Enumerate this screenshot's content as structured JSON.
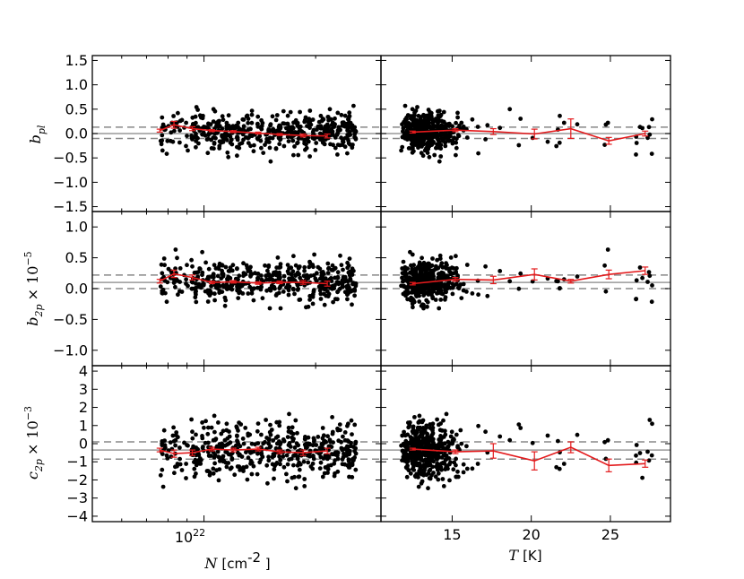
{
  "figure": {
    "x_axes": [
      {
        "symbol": "N",
        "unit": "[cm",
        "unit_exp": "-2",
        "unit_close": " ]",
        "scale": "log",
        "xlim": [
          5000000000000000000000,
          30000000000000000000000
        ],
        "ticks": [
          {
            "value": 10000000000000000000000,
            "base": "10",
            "exp": "22"
          }
        ]
      },
      {
        "symbol": "T",
        "unit": "[K]",
        "scale": "linear",
        "xlim": [
          10.5,
          28.8
        ],
        "ticks": [
          15,
          20,
          25
        ]
      }
    ],
    "rows": [
      {
        "ylabel": "b",
        "ylabel_sub": "pl",
        "ylabel_factor": "",
        "ylabel_exp": "",
        "ylim": [
          -1.6,
          1.6
        ],
        "ticks": [
          "1.5",
          "1.0",
          "0.5",
          "0.0",
          "−0.5",
          "−1.0",
          "−1.5"
        ],
        "tick_values": [
          1.5,
          1.0,
          0.5,
          0.0,
          -0.5,
          -1.0,
          -1.5
        ],
        "hlines": {
          "solid": 0.0,
          "dashed": [
            0.13,
            -0.1
          ]
        }
      },
      {
        "ylabel": "b",
        "ylabel_sub": "2p",
        "ylabel_factor": "× 10",
        "ylabel_exp": "−5",
        "ylim": [
          -1.25,
          1.25
        ],
        "ticks": [
          "1.0",
          "0.5",
          "0.0",
          "−0.5",
          "−1.0"
        ],
        "tick_values": [
          1.0,
          0.5,
          0.0,
          -0.5,
          -1.0
        ],
        "hlines": {
          "solid": 0.1,
          "dashed": [
            0.22,
            0.0
          ]
        }
      },
      {
        "ylabel": "c",
        "ylabel_sub": "2p",
        "ylabel_factor": "× 10",
        "ylabel_exp": "−3",
        "ylim": [
          -4.3,
          4.3
        ],
        "ticks": [
          "4",
          "3",
          "2",
          "1",
          "0",
          "−1",
          "−2",
          "−3",
          "−4"
        ],
        "tick_values": [
          4,
          3,
          2,
          1,
          0,
          -1,
          -2,
          -3,
          -4
        ],
        "hlines": {
          "solid": -0.35,
          "dashed": [
            0.1,
            -0.85
          ]
        }
      }
    ],
    "colors": {
      "points": "#000000",
      "binned": "#e31a1c",
      "solid_line": "#999999",
      "dashed_line": "#888888"
    }
  },
  "chart_data": [
    {
      "type": "scatter",
      "panel": "row1-left",
      "x_label": "N [cm^-2]",
      "y_label": "b_pl",
      "note": "~500 scattered source points centered near 0.05, spread about ±0.35",
      "binned_series": {
        "x": [
          7.6e+21,
          8.3e+21,
          9.3e+21,
          1.05e+22,
          1.2e+22,
          1.4e+22,
          1.6e+22,
          1.85e+22,
          2.15e+22
        ],
        "y": [
          0.06,
          0.18,
          0.1,
          0.06,
          0.04,
          0.01,
          -0.02,
          -0.04,
          -0.05
        ],
        "err": [
          0.03,
          0.07,
          0.04,
          0.02,
          0.02,
          0.02,
          0.02,
          0.03,
          0.04
        ]
      }
    },
    {
      "type": "scatter",
      "panel": "row1-right",
      "x_label": "T [K]",
      "y_label": "b_pl",
      "note": "dense cluster at T 11.5–15 K",
      "binned_series": {
        "x": [
          12.5,
          15.2,
          17.6,
          20.2,
          22.5,
          24.9,
          27.2
        ],
        "y": [
          0.03,
          0.07,
          0.04,
          -0.01,
          0.1,
          -0.15,
          0.0
        ],
        "err": [
          0.02,
          0.03,
          0.06,
          0.1,
          0.2,
          0.07,
          0.05
        ]
      }
    },
    {
      "type": "scatter",
      "panel": "row2-left",
      "x_label": "N [cm^-2]",
      "y_label": "b_2p × 10^-5",
      "binned_series": {
        "x": [
          7.6e+21,
          8.3e+21,
          9.3e+21,
          1.05e+22,
          1.2e+22,
          1.4e+22,
          1.6e+22,
          1.85e+22,
          2.15e+22
        ],
        "y": [
          0.12,
          0.24,
          0.18,
          0.1,
          0.11,
          0.09,
          0.1,
          0.1,
          0.08
        ],
        "err": [
          0.03,
          0.06,
          0.04,
          0.02,
          0.02,
          0.02,
          0.02,
          0.03,
          0.04
        ]
      }
    },
    {
      "type": "scatter",
      "panel": "row2-right",
      "x_label": "T [K]",
      "y_label": "b_2p × 10^-5",
      "binned_series": {
        "x": [
          12.5,
          15.2,
          17.6,
          20.2,
          22.5,
          24.9,
          27.2
        ],
        "y": [
          0.08,
          0.15,
          0.14,
          0.23,
          0.12,
          0.23,
          0.29
        ],
        "err": [
          0.02,
          0.03,
          0.06,
          0.09,
          0.03,
          0.07,
          0.06
        ]
      }
    },
    {
      "type": "scatter",
      "panel": "row3-left",
      "x_label": "N [cm^-2]",
      "y_label": "c_2p × 10^-3",
      "binned_series": {
        "x": [
          7.6e+21,
          8.3e+21,
          9.3e+21,
          1.05e+22,
          1.2e+22,
          1.4e+22,
          1.6e+22,
          1.85e+22,
          2.15e+22
        ],
        "y": [
          -0.35,
          -0.55,
          -0.5,
          -0.3,
          -0.35,
          -0.3,
          -0.45,
          -0.5,
          -0.4
        ],
        "err": [
          0.1,
          0.2,
          0.15,
          0.1,
          0.1,
          0.1,
          0.1,
          0.15,
          0.15
        ]
      }
    },
    {
      "type": "scatter",
      "panel": "row3-right",
      "x_label": "T [K]",
      "y_label": "c_2p × 10^-3",
      "binned_series": {
        "x": [
          12.5,
          15.2,
          17.6,
          20.2,
          22.5,
          24.9,
          27.2
        ],
        "y": [
          -0.3,
          -0.45,
          -0.4,
          -0.95,
          -0.2,
          -1.2,
          -1.1
        ],
        "err": [
          0.05,
          0.1,
          0.4,
          0.5,
          0.3,
          0.35,
          0.2
        ]
      }
    }
  ]
}
